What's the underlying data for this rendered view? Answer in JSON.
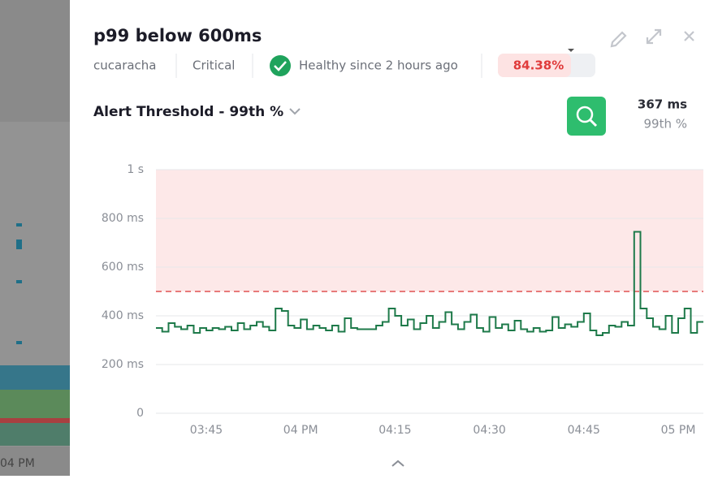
{
  "background": {
    "time_label": "04 PM"
  },
  "header": {
    "title": "p99 below 600ms",
    "service": "cucaracha",
    "severity": "Critical",
    "status": "Healthy since 2 hours ago",
    "gauge": "84.38%"
  },
  "selector": {
    "label": "Alert Threshold - 99th %"
  },
  "stat": {
    "value": "367 ms",
    "label": "99th %"
  },
  "chart_data": {
    "type": "line",
    "step": true,
    "x": [
      "03:37",
      "03:38",
      "03:39",
      "03:40",
      "03:41",
      "03:42",
      "03:43",
      "03:44",
      "03:45",
      "03:46",
      "03:47",
      "03:48",
      "03:49",
      "03:50",
      "03:51",
      "03:52",
      "03:53",
      "03:54",
      "03:55",
      "03:56",
      "03:57",
      "03:58",
      "03:59",
      "04:00",
      "04:01",
      "04:02",
      "04:03",
      "04:04",
      "04:05",
      "04:06",
      "04:07",
      "04:08",
      "04:09",
      "04:10",
      "04:11",
      "04:12",
      "04:13",
      "04:14",
      "04:15",
      "04:16",
      "04:17",
      "04:18",
      "04:19",
      "04:20",
      "04:21",
      "04:22",
      "04:23",
      "04:24",
      "04:25",
      "04:26",
      "04:27",
      "04:28",
      "04:29",
      "04:30",
      "04:31",
      "04:32",
      "04:33",
      "04:34",
      "04:35",
      "04:36",
      "04:37",
      "04:38",
      "04:39",
      "04:40",
      "04:41",
      "04:42",
      "04:43",
      "04:44",
      "04:45",
      "04:46",
      "04:47",
      "04:48",
      "04:49",
      "04:50",
      "04:51",
      "04:52",
      "04:53",
      "04:54",
      "04:55",
      "04:56",
      "04:57",
      "04:58",
      "04:59",
      "05:00",
      "05:01",
      "05:02",
      "05:03"
    ],
    "series": [
      {
        "color": "#1e7a4a",
        "values": [
          350,
          335,
          370,
          355,
          345,
          360,
          330,
          350,
          340,
          350,
          345,
          355,
          340,
          370,
          345,
          360,
          375,
          355,
          340,
          430,
          420,
          360,
          350,
          385,
          345,
          360,
          350,
          340,
          360,
          335,
          390,
          350,
          345,
          345,
          345,
          360,
          375,
          430,
          400,
          360,
          385,
          345,
          370,
          400,
          350,
          375,
          415,
          365,
          345,
          375,
          405,
          350,
          335,
          395,
          350,
          365,
          340,
          380,
          345,
          335,
          350,
          335,
          340,
          395,
          350,
          365,
          355,
          375,
          410,
          340,
          320,
          330,
          360,
          355,
          375,
          360,
          745,
          430,
          390,
          355,
          345,
          400,
          330,
          390,
          430,
          330,
          375
        ]
      }
    ],
    "threshold": 500,
    "threshold_color": "#e05252",
    "zone_color": "#fde8e8",
    "ylim": [
      0,
      1000
    ],
    "yticks": [
      0,
      {
        "value": 200,
        "label": "200 ms"
      },
      {
        "value": 400,
        "label": "400 ms"
      },
      {
        "value": 600,
        "label": "600 ms"
      },
      {
        "value": 800,
        "label": "800 ms"
      },
      {
        "value": 1000,
        "label": "1 s"
      }
    ],
    "xticks": [
      "03:45",
      {
        "value": "04:00",
        "label": "04 PM"
      },
      "04:15",
      "04:30",
      "04:45",
      {
        "value": "05:00",
        "label": "05 PM"
      }
    ],
    "grid": true
  }
}
